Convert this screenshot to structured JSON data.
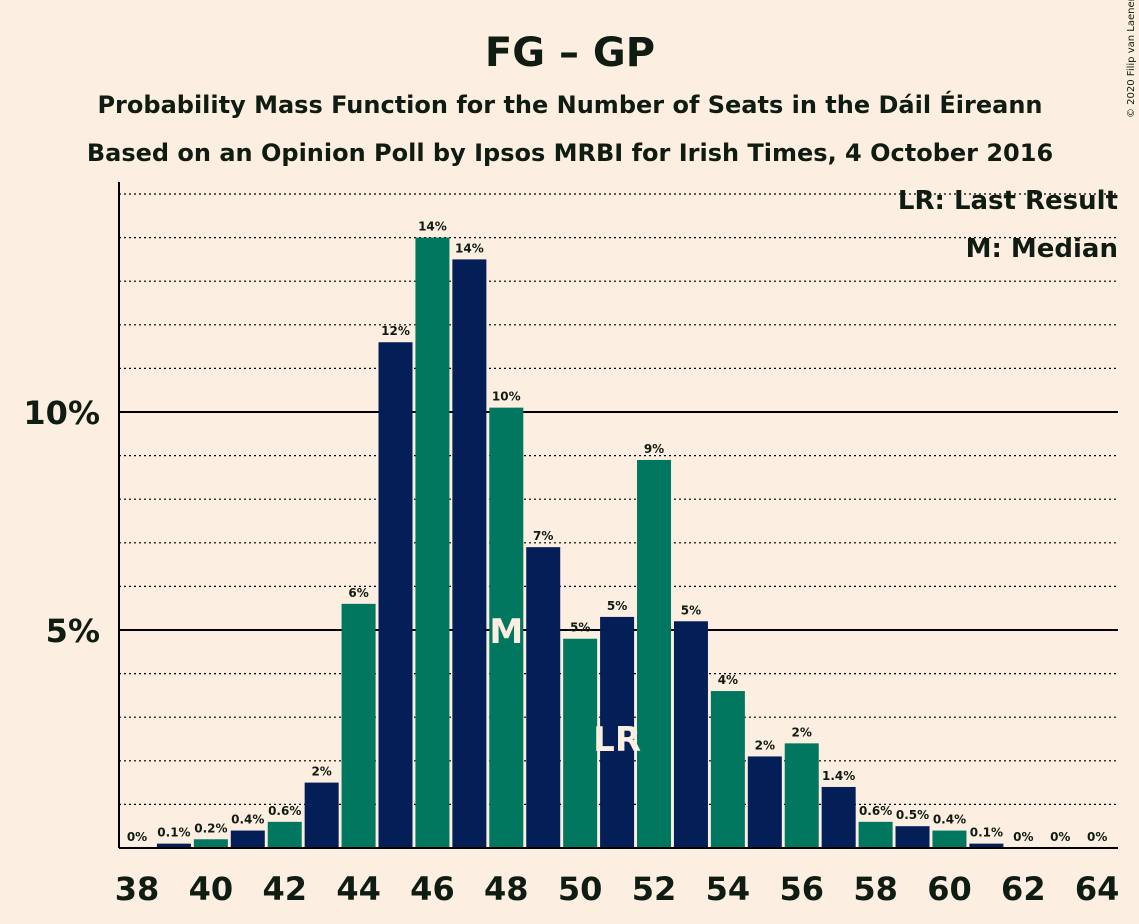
{
  "header": {
    "title": "FG – GP",
    "subtitle_1": "Probability Mass Function for the Number of Seats in the Dáil Éireann",
    "subtitle_2": "Based on an Opinion Poll by Ipsos MRBI for Irish Times, 4 October 2016",
    "copyright": "© 2020 Filip van Laenen"
  },
  "legend": {
    "last_result": "LR: Last Result",
    "median": "M: Median"
  },
  "colors": {
    "background": "#FDEEE2",
    "navy": "#041E58",
    "green": "#00775E",
    "text": "#0F1C11"
  },
  "chart_data": {
    "type": "bar",
    "x": [
      38,
      39,
      40,
      41,
      42,
      43,
      44,
      45,
      46,
      47,
      48,
      49,
      50,
      51,
      52,
      53,
      54,
      55,
      56,
      57,
      58,
      59,
      60,
      61,
      62,
      63,
      64
    ],
    "values": [
      0,
      0.1,
      0.2,
      0.4,
      0.6,
      1.5,
      5.6,
      11.6,
      14.0,
      13.5,
      10.1,
      6.9,
      4.8,
      5.3,
      8.9,
      5.2,
      3.6,
      2.1,
      2.4,
      1.4,
      0.6,
      0.5,
      0.4,
      0.1,
      0,
      0,
      0
    ],
    "labels": [
      "0%",
      "0.1%",
      "0.2%",
      "0.4%",
      "0.6%",
      "2%",
      "6%",
      "12%",
      "14%",
      "14%",
      "10%",
      "7%",
      "5%",
      "5%",
      "9%",
      "5%",
      "4%",
      "2%",
      "2%",
      "1.4%",
      "0.6%",
      "0.5%",
      "0.4%",
      "0.1%",
      "0%",
      "0%",
      "0%"
    ],
    "x_ticks": [
      38,
      40,
      42,
      44,
      46,
      48,
      50,
      52,
      54,
      56,
      58,
      60,
      62,
      64
    ],
    "y_ticks": [
      {
        "value": 5,
        "label": "5%"
      },
      {
        "value": 10,
        "label": "10%"
      }
    ],
    "ylim": [
      0,
      15.2
    ],
    "grid": "dotted every 1%",
    "median": 48,
    "median_label": "M",
    "last_result": 51,
    "last_result_label": "LR"
  }
}
